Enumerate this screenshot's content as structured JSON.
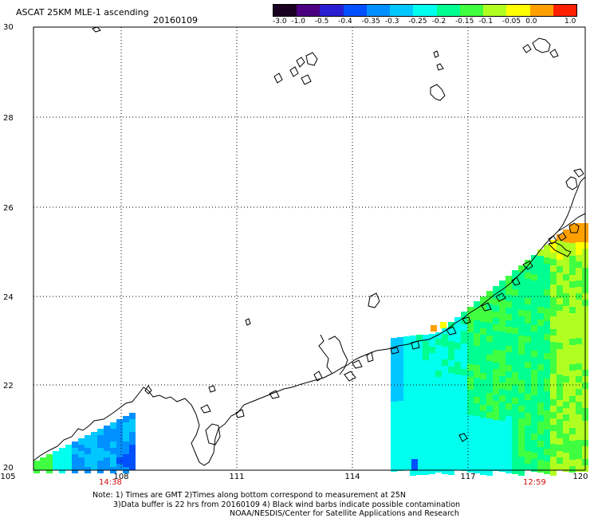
{
  "header": {
    "title": "ASCAT 25KM MLE-1 ascending",
    "date": "20160109"
  },
  "colorbar": {
    "labels": [
      "-3.0",
      "-1.0",
      "-0.5",
      "-0.4",
      "-0.35",
      "-0.3",
      "-0.25",
      "-0.2",
      "-0.15",
      "-0.1",
      "-0.05",
      "0.0",
      "1.0"
    ],
    "colors": [
      "#1a0022",
      "#4b0082",
      "#2a1fd0",
      "#0050ff",
      "#0090ff",
      "#00c8ff",
      "#00ffee",
      "#00ff90",
      "#40ff40",
      "#b0ff20",
      "#ffff00",
      "#ffa000",
      "#ff2000"
    ]
  },
  "axes": {
    "lat_labels": [
      "30",
      "28",
      "26",
      "24",
      "22",
      "20"
    ],
    "lon_labels": [
      "105",
      "108",
      "111",
      "114",
      "117",
      "120"
    ],
    "lat_range": [
      20,
      30
    ],
    "lon_range": [
      105,
      120
    ],
    "grid": "dotted"
  },
  "times": {
    "left": "14:38",
    "right": "12:59"
  },
  "notes": {
    "line1": "Note: 1) Times are GMT 2)Times along bottom correspond to measurement at 25N",
    "line2": "3)Data buffer is 22 hrs from 20160109 4) Black wind barbs indicate possible contamination",
    "line3": "NOAA/NESDIS/Center for Satellite Applications and Research"
  }
}
